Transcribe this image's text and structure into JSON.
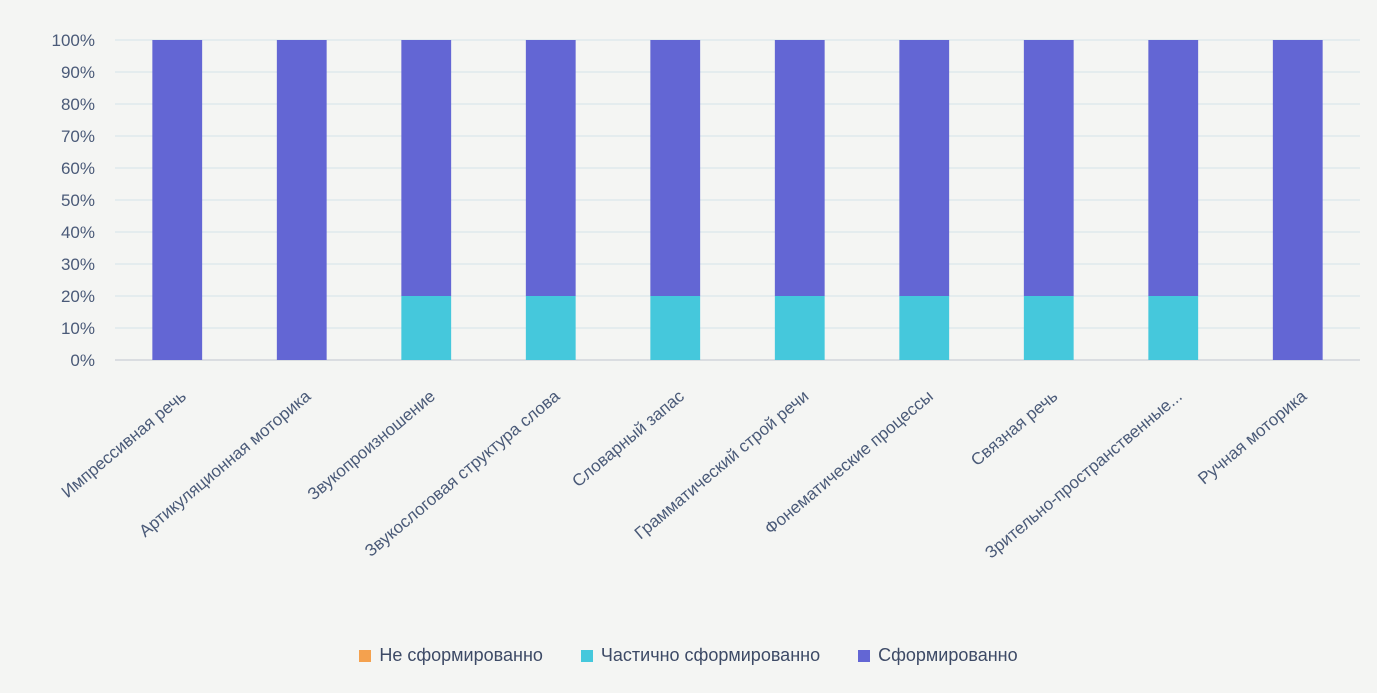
{
  "chart_data": {
    "type": "bar",
    "stacked": true,
    "percent": true,
    "categories": [
      "Импрессивная речь",
      "Артикуляционная моторика",
      "Звукопроизношение",
      "Звукослоговая структура слова",
      "Словарный запас",
      "Грамматический строй речи",
      "Фонематические процессы",
      "Связная речь",
      "Зрительно-пространственные...",
      "Ручная моторика"
    ],
    "series": [
      {
        "name": "Не сформированно",
        "color": "#f4a14e",
        "values": [
          0,
          0,
          0,
          0,
          0,
          0,
          0,
          0,
          0,
          0
        ]
      },
      {
        "name": "Частично сформированно",
        "color": "#45c8dc",
        "values": [
          0,
          0,
          20,
          20,
          20,
          20,
          20,
          20,
          20,
          0
        ]
      },
      {
        "name": "Сформированно",
        "color": "#6366d4",
        "values": [
          100,
          100,
          80,
          80,
          80,
          80,
          80,
          80,
          80,
          100
        ]
      }
    ],
    "ylim": [
      0,
      100
    ],
    "yticks": [
      "0%",
      "10%",
      "20%",
      "30%",
      "40%",
      "50%",
      "60%",
      "70%",
      "80%",
      "90%",
      "100%"
    ],
    "grid": true,
    "legend_position": "bottom",
    "title": "",
    "xlabel": "",
    "ylabel": ""
  }
}
